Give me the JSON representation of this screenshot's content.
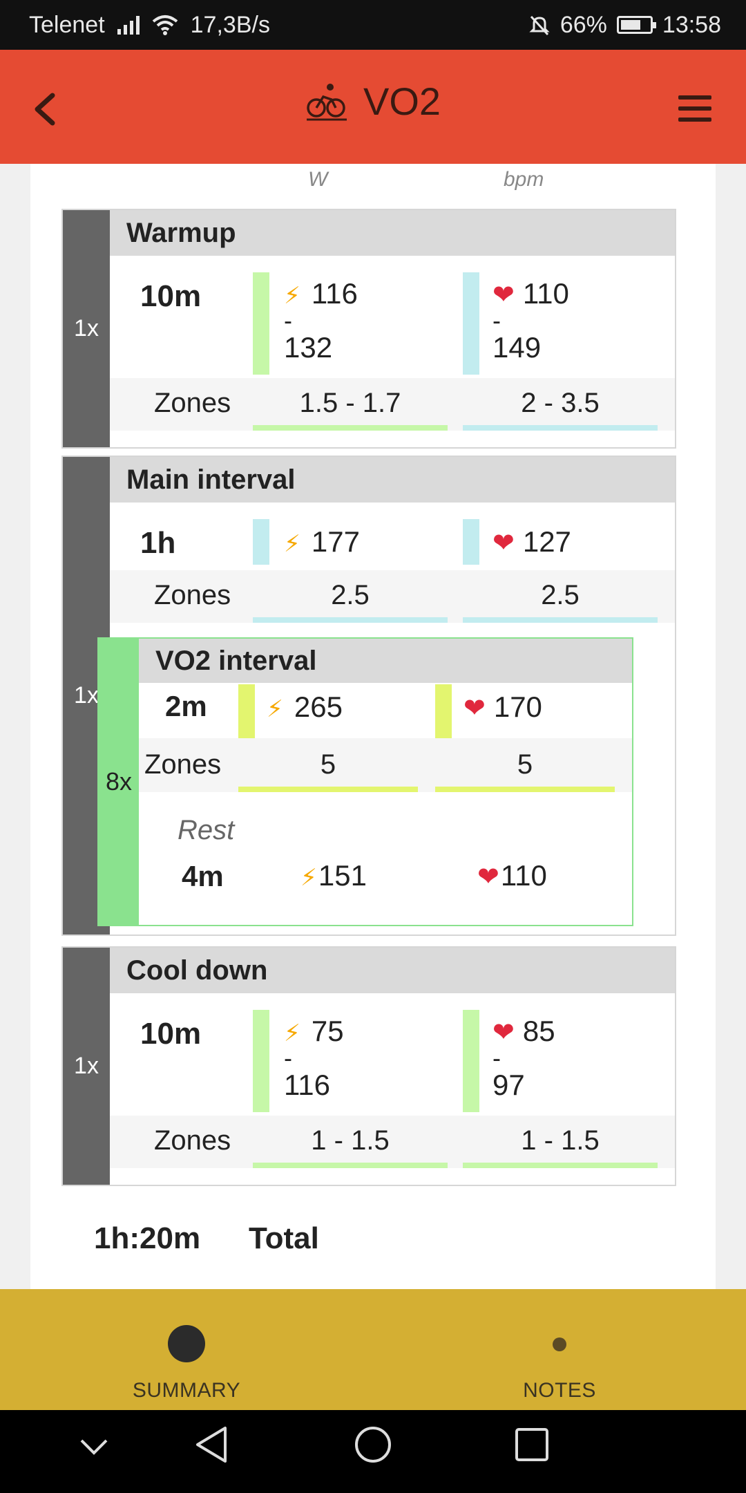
{
  "status_bar": {
    "carrier": "Telenet",
    "speed": "17,3B/s",
    "battery": "66%",
    "time": "13:58"
  },
  "header": {
    "title": "VO2",
    "icons": {
      "back": "back-arrow-icon",
      "sport": "cycling-icon",
      "menu": "hamburger-menu-icon"
    }
  },
  "units": {
    "power": "W",
    "hr": "bpm"
  },
  "blocks": [
    {
      "name": "Warmup",
      "repeat": "1x",
      "duration": "10m",
      "power_low": "116",
      "power_sep": "-",
      "power_high": "132",
      "hr_low": "110",
      "hr_sep": "-",
      "hr_high": "149",
      "zones_label": "Zones",
      "power_zone": "1.5 - 1.7",
      "hr_zone": "2 - 3.5"
    },
    {
      "name": "Main interval",
      "repeat": "1x",
      "duration": "1h",
      "power": "177",
      "hr": "127",
      "zones_label": "Zones",
      "power_zone": "2.5",
      "hr_zone": "2.5",
      "sub": {
        "name": "VO2 interval",
        "repeat": "8x",
        "duration": "2m",
        "power": "265",
        "hr": "170",
        "zones_label": "Zones",
        "power_zone": "5",
        "hr_zone": "5",
        "rest_label": "Rest",
        "rest_duration": "4m",
        "rest_power": "151",
        "rest_hr": "110"
      }
    },
    {
      "name": "Cool down",
      "repeat": "1x",
      "duration": "10m",
      "power_low": "75",
      "power_sep": "-",
      "power_high": "116",
      "hr_low": "85",
      "hr_sep": "-",
      "hr_high": "97",
      "zones_label": "Zones",
      "power_zone": "1 - 1.5",
      "hr_zone": "1 - 1.5"
    }
  ],
  "total": {
    "duration": "1h:20m",
    "label": "Total"
  },
  "bottom_nav": {
    "summary": "SUMMARY",
    "notes": "NOTES"
  },
  "colors": {
    "header": "#e54b33",
    "bottom_nav": "#d4af33",
    "repeat_bar": "#656565",
    "zone_green": "#c6f7a8",
    "zone_cyan": "#c2ecef",
    "zone_yellow": "#e3f56f",
    "nested_green": "#8ae28e"
  }
}
